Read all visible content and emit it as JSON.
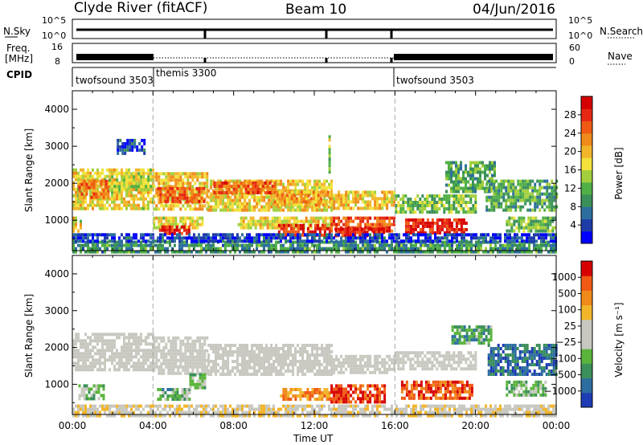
{
  "header": {
    "station": "Clyde River (fitACF)",
    "beam": "Beam 10",
    "date": "04/Jun/2016"
  },
  "status_panels": {
    "nsky_label": "N.Sky",
    "nsearch_label": "N.Search",
    "noise_ticks": [
      "10^5",
      "10^0"
    ],
    "freq_label_line1": "Freq.",
    "freq_label_line2": "[MHz]",
    "freq_ticks": [
      "16",
      "8"
    ],
    "nave_label": "Nave",
    "nave_ticks": [
      "60",
      "0"
    ],
    "cpid_label": "CPID",
    "cpid_segments": [
      {
        "name": "twofsound 3503",
        "start_hour": 0,
        "end_hour": 4
      },
      {
        "name": "themis 3300",
        "start_hour": 4,
        "end_hour": 16
      },
      {
        "name": "twofsound 3503",
        "start_hour": 16,
        "end_hour": 24
      }
    ]
  },
  "chart_data": [
    {
      "type": "heatmap",
      "panel": "power",
      "ylabel": "Slant Range [km]",
      "xlabel": "",
      "xlim": [
        0,
        24
      ],
      "ylim": [
        180,
        4500
      ],
      "yticks": [
        1000,
        2000,
        3000,
        4000
      ],
      "xticks": [
        "00:00",
        "04:00",
        "08:00",
        "12:00",
        "16:00",
        "20:00",
        "00:00"
      ],
      "colorbar": {
        "label": "Power [dB]",
        "ticks": [
          "4",
          "8",
          "12",
          "16",
          "20",
          "24",
          "28"
        ],
        "colors": [
          "#0000ff",
          "#1e3ca8",
          "#2d6e9e",
          "#3a8f5a",
          "#50b046",
          "#a2cf3c",
          "#f2e23a",
          "#f2b52a",
          "#f08a1a",
          "#f05a14",
          "#e62814",
          "#d70000"
        ]
      },
      "vlines_hours": [
        4,
        16
      ],
      "regions": [
        {
          "x0": 0.0,
          "x1": 4.0,
          "y0": 1300,
          "y1": 2400,
          "level": 0.55
        },
        {
          "x0": 0.3,
          "x1": 1.8,
          "y0": 1600,
          "y1": 2100,
          "level": 0.75
        },
        {
          "x0": 1.8,
          "x1": 4.0,
          "y0": 1800,
          "y1": 2300,
          "level": 0.5
        },
        {
          "x0": 0.0,
          "x1": 0.4,
          "y0": 700,
          "y1": 1100,
          "level": 0.55
        },
        {
          "x0": 2.2,
          "x1": 3.6,
          "y0": 2800,
          "y1": 3200,
          "level": 0.15
        },
        {
          "x0": 4.0,
          "x1": 6.7,
          "y0": 1300,
          "y1": 2300,
          "level": 0.6
        },
        {
          "x0": 4.2,
          "x1": 6.5,
          "y0": 1500,
          "y1": 1900,
          "level": 0.78
        },
        {
          "x0": 4.0,
          "x1": 6.4,
          "y0": 800,
          "y1": 1100,
          "level": 0.55
        },
        {
          "x0": 4.3,
          "x1": 5.8,
          "y0": 620,
          "y1": 860,
          "level": 0.88
        },
        {
          "x0": 6.7,
          "x1": 12.8,
          "y0": 1300,
          "y1": 2100,
          "level": 0.58
        },
        {
          "x0": 7.0,
          "x1": 10.0,
          "y0": 1750,
          "y1": 2050,
          "level": 0.8
        },
        {
          "x0": 10.0,
          "x1": 12.8,
          "y0": 1400,
          "y1": 1800,
          "level": 0.65
        },
        {
          "x0": 8.2,
          "x1": 12.8,
          "y0": 800,
          "y1": 1100,
          "level": 0.55
        },
        {
          "x0": 10.2,
          "x1": 12.8,
          "y0": 580,
          "y1": 900,
          "level": 0.9
        },
        {
          "x0": 12.8,
          "x1": 16.0,
          "y0": 1300,
          "y1": 1800,
          "level": 0.6
        },
        {
          "x0": 12.8,
          "x1": 16.0,
          "y0": 700,
          "y1": 1100,
          "level": 0.82
        },
        {
          "x0": 13.0,
          "x1": 15.5,
          "y0": 550,
          "y1": 800,
          "level": 0.9
        },
        {
          "x0": 16.0,
          "x1": 20.0,
          "y0": 1200,
          "y1": 1700,
          "level": 0.4
        },
        {
          "x0": 16.5,
          "x1": 19.5,
          "y0": 650,
          "y1": 1050,
          "level": 0.92
        },
        {
          "x0": 18.5,
          "x1": 21.0,
          "y0": 1800,
          "y1": 2600,
          "level": 0.35
        },
        {
          "x0": 20.5,
          "x1": 24.0,
          "y0": 1300,
          "y1": 2100,
          "level": 0.35
        },
        {
          "x0": 21.5,
          "x1": 24.0,
          "y0": 700,
          "y1": 1100,
          "level": 0.4
        },
        {
          "x0": 0.0,
          "x1": 24.0,
          "y0": 180,
          "y1": 450,
          "level": 0.3
        },
        {
          "x0": 0.0,
          "x1": 24.0,
          "y0": 450,
          "y1": 650,
          "level": 0.12
        },
        {
          "x0": 12.7,
          "x1": 12.8,
          "y0": 2300,
          "y1": 3300,
          "level": 0.45
        }
      ]
    },
    {
      "type": "heatmap",
      "panel": "velocity",
      "ylabel": "Slant Range [km]",
      "xlabel": "Time UT",
      "xlim": [
        0,
        24
      ],
      "ylim": [
        180,
        4500
      ],
      "yticks": [
        1000,
        2000,
        3000,
        4000
      ],
      "xticks": [
        "00:00",
        "04:00",
        "08:00",
        "12:00",
        "16:00",
        "20:00",
        "00:00"
      ],
      "colorbar": {
        "label": "Velocity [m s⁻¹]",
        "ticks": [
          "1000",
          "500",
          "100",
          "25",
          "−25",
          "−100",
          "−500",
          "−1000"
        ],
        "colors": [
          "#1e3cb4",
          "#2d6ea0",
          "#3a8f5a",
          "#5ab43c",
          "#c8c8c0",
          "#c8c8c0",
          "#f2b52a",
          "#f08a1a",
          "#f05a14",
          "#d70000"
        ]
      },
      "vlines_hours": [
        4,
        16
      ],
      "regions": [
        {
          "x0": 0.0,
          "x1": 4.0,
          "y0": 1400,
          "y1": 2400,
          "level": 0.5
        },
        {
          "x0": 4.0,
          "x1": 6.7,
          "y0": 1300,
          "y1": 2300,
          "level": 0.5
        },
        {
          "x0": 6.7,
          "x1": 12.8,
          "y0": 1300,
          "y1": 2100,
          "level": 0.5
        },
        {
          "x0": 12.8,
          "x1": 16.0,
          "y0": 1300,
          "y1": 1800,
          "level": 0.5
        },
        {
          "x0": 16.0,
          "x1": 20.0,
          "y0": 1400,
          "y1": 1900,
          "level": 0.5
        },
        {
          "x0": 0.3,
          "x1": 1.5,
          "y0": 650,
          "y1": 1000,
          "level": 0.35
        },
        {
          "x0": 4.2,
          "x1": 5.8,
          "y0": 580,
          "y1": 900,
          "level": 0.33
        },
        {
          "x0": 5.8,
          "x1": 6.6,
          "y0": 900,
          "y1": 1300,
          "level": 0.38
        },
        {
          "x0": 10.3,
          "x1": 12.8,
          "y0": 560,
          "y1": 900,
          "level": 0.75
        },
        {
          "x0": 12.8,
          "x1": 15.5,
          "y0": 540,
          "y1": 1000,
          "level": 0.9
        },
        {
          "x0": 16.3,
          "x1": 19.8,
          "y0": 600,
          "y1": 1100,
          "level": 0.85
        },
        {
          "x0": 18.8,
          "x1": 20.8,
          "y0": 2100,
          "y1": 2600,
          "level": 0.3
        },
        {
          "x0": 20.6,
          "x1": 24.0,
          "y0": 1300,
          "y1": 2100,
          "level": 0.15
        },
        {
          "x0": 21.5,
          "x1": 23.5,
          "y0": 700,
          "y1": 1100,
          "level": 0.35
        },
        {
          "x0": 0.0,
          "x1": 24.0,
          "y0": 180,
          "y1": 450,
          "level": 0.55
        }
      ]
    }
  ]
}
